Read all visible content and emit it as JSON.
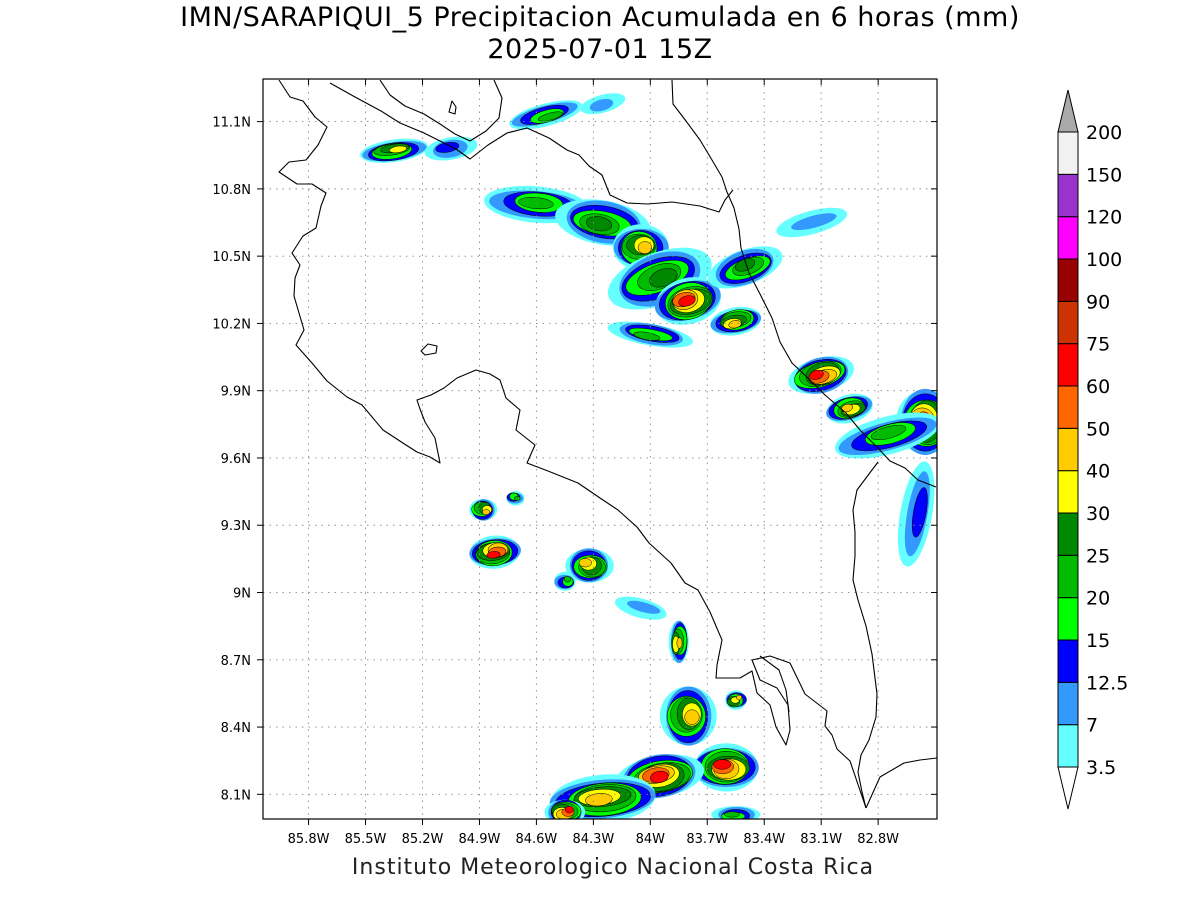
{
  "title_line1": "IMN/SARAPIQUI_5 Precipitacion Acumulada en 6 horas (mm)",
  "title_line2": "2025-07-01 15Z",
  "credit": "Instituto Meteorologico Nacional Costa Rica",
  "map": {
    "lon_range": [
      -86.04,
      -82.49
    ],
    "lat_range": [
      7.99,
      11.29
    ],
    "grid": "dotted",
    "lon_ticks": [
      {
        "value": -85.8,
        "label": "85.8W"
      },
      {
        "value": -85.5,
        "label": "85.5W"
      },
      {
        "value": -85.2,
        "label": "85.2W"
      },
      {
        "value": -84.9,
        "label": "84.9W"
      },
      {
        "value": -84.6,
        "label": "84.6W"
      },
      {
        "value": -84.3,
        "label": "84.3W"
      },
      {
        "value": -84.0,
        "label": "84W"
      },
      {
        "value": -83.7,
        "label": "83.7W"
      },
      {
        "value": -83.4,
        "label": "83.4W"
      },
      {
        "value": -83.1,
        "label": "83.1W"
      },
      {
        "value": -82.8,
        "label": "82.8W"
      }
    ],
    "lat_ticks": [
      {
        "value": 11.1,
        "label": "11.1N"
      },
      {
        "value": 10.8,
        "label": "10.8N"
      },
      {
        "value": 10.5,
        "label": "10.5N"
      },
      {
        "value": 10.2,
        "label": "10.2N"
      },
      {
        "value": 9.9,
        "label": "9.9N"
      },
      {
        "value": 9.6,
        "label": "9.6N"
      },
      {
        "value": 9.3,
        "label": "9.3N"
      },
      {
        "value": 9.0,
        "label": "9N"
      },
      {
        "value": 8.7,
        "label": "8.7N"
      },
      {
        "value": 8.4,
        "label": "8.4N"
      },
      {
        "value": 8.1,
        "label": "8.1N"
      }
    ]
  },
  "colorbar": {
    "labels": [
      "3.5",
      "7",
      "12.5",
      "15",
      "20",
      "25",
      "30",
      "40",
      "50",
      "60",
      "75",
      "90",
      "100",
      "120",
      "150",
      "200"
    ],
    "bins": [
      {
        "color": "#66ffff"
      },
      {
        "color": "#3399ff"
      },
      {
        "color": "#0000ff"
      },
      {
        "color": "#00ff00"
      },
      {
        "color": "#00bb00"
      },
      {
        "color": "#008800"
      },
      {
        "color": "#ffff00"
      },
      {
        "color": "#ffcc00"
      },
      {
        "color": "#ff6600"
      },
      {
        "color": "#ff0000"
      },
      {
        "color": "#cc3300"
      },
      {
        "color": "#990000"
      },
      {
        "color": "#ff00ff"
      },
      {
        "color": "#9933cc"
      },
      {
        "color": "#f2f2f2"
      }
    ],
    "under_color": "#ffffff",
    "over_color": "#aaaaaa"
  },
  "precip_cells": [
    {
      "lon": -85.35,
      "lat": 10.97,
      "rx": 0.18,
      "ry": 0.05,
      "rot": -8,
      "max": 32
    },
    {
      "lon": -85.05,
      "lat": 10.98,
      "rx": 0.14,
      "ry": 0.05,
      "rot": -10,
      "max": 14
    },
    {
      "lon": -84.55,
      "lat": 11.13,
      "rx": 0.2,
      "ry": 0.05,
      "rot": -15,
      "max": 22
    },
    {
      "lon": -84.25,
      "lat": 11.18,
      "rx": 0.12,
      "ry": 0.04,
      "rot": -15,
      "max": 8
    },
    {
      "lon": -84.6,
      "lat": 10.73,
      "rx": 0.28,
      "ry": 0.08,
      "rot": 5,
      "max": 23
    },
    {
      "lon": -84.25,
      "lat": 10.65,
      "rx": 0.25,
      "ry": 0.1,
      "rot": 10,
      "max": 26
    },
    {
      "lon": -84.05,
      "lat": 10.54,
      "rx": 0.15,
      "ry": 0.1,
      "rot": 0,
      "max": 42
    },
    {
      "lon": -83.95,
      "lat": 10.4,
      "rx": 0.28,
      "ry": 0.12,
      "rot": -20,
      "max": 26
    },
    {
      "lon": -83.8,
      "lat": 10.3,
      "rx": 0.18,
      "ry": 0.1,
      "rot": -15,
      "max": 62
    },
    {
      "lon": -83.5,
      "lat": 10.45,
      "rx": 0.2,
      "ry": 0.08,
      "rot": -20,
      "max": 28
    },
    {
      "lon": -83.55,
      "lat": 10.21,
      "rx": 0.14,
      "ry": 0.06,
      "rot": -10,
      "max": 40
    },
    {
      "lon": -84.0,
      "lat": 10.15,
      "rx": 0.22,
      "ry": 0.05,
      "rot": 10,
      "max": 22
    },
    {
      "lon": -83.15,
      "lat": 10.65,
      "rx": 0.2,
      "ry": 0.05,
      "rot": -15,
      "max": 8
    },
    {
      "lon": -83.1,
      "lat": 9.97,
      "rx": 0.17,
      "ry": 0.08,
      "rot": -15,
      "max": 62
    },
    {
      "lon": -82.95,
      "lat": 9.82,
      "rx": 0.13,
      "ry": 0.06,
      "rot": -15,
      "max": 42
    },
    {
      "lon": -82.55,
      "lat": 9.76,
      "rx": 0.15,
      "ry": 0.15,
      "rot": 0,
      "max": 70
    },
    {
      "lon": -82.75,
      "lat": 9.7,
      "rx": 0.3,
      "ry": 0.08,
      "rot": -15,
      "max": 22
    },
    {
      "lon": -82.6,
      "lat": 9.35,
      "rx": 0.08,
      "ry": 0.25,
      "rot": 10,
      "max": 14
    },
    {
      "lon": -84.82,
      "lat": 9.18,
      "rx": 0.14,
      "ry": 0.07,
      "rot": -5,
      "max": 72
    },
    {
      "lon": -84.88,
      "lat": 9.37,
      "rx": 0.07,
      "ry": 0.05,
      "rot": 0,
      "max": 40
    },
    {
      "lon": -84.71,
      "lat": 9.42,
      "rx": 0.05,
      "ry": 0.03,
      "rot": 0,
      "max": 22
    },
    {
      "lon": -84.32,
      "lat": 9.12,
      "rx": 0.12,
      "ry": 0.08,
      "rot": 0,
      "max": 42
    },
    {
      "lon": -84.45,
      "lat": 9.05,
      "rx": 0.06,
      "ry": 0.04,
      "rot": 0,
      "max": 22
    },
    {
      "lon": -83.85,
      "lat": 8.78,
      "rx": 0.05,
      "ry": 0.1,
      "rot": 0,
      "max": 42
    },
    {
      "lon": -84.05,
      "lat": 8.93,
      "rx": 0.15,
      "ry": 0.04,
      "rot": 15,
      "max": 12
    },
    {
      "lon": -83.8,
      "lat": 8.45,
      "rx": 0.14,
      "ry": 0.14,
      "rot": 0,
      "max": 42
    },
    {
      "lon": -83.6,
      "lat": 8.22,
      "rx": 0.18,
      "ry": 0.1,
      "rot": 0,
      "max": 62
    },
    {
      "lon": -83.95,
      "lat": 8.18,
      "rx": 0.22,
      "ry": 0.1,
      "rot": -10,
      "max": 62
    },
    {
      "lon": -84.25,
      "lat": 8.08,
      "rx": 0.3,
      "ry": 0.1,
      "rot": -5,
      "max": 48
    },
    {
      "lon": -84.45,
      "lat": 8.02,
      "rx": 0.1,
      "ry": 0.06,
      "rot": 0,
      "max": 62
    },
    {
      "lon": -83.55,
      "lat": 8.52,
      "rx": 0.06,
      "ry": 0.04,
      "rot": 0,
      "max": 42
    },
    {
      "lon": -83.55,
      "lat": 8.01,
      "rx": 0.12,
      "ry": 0.04,
      "rot": 0,
      "max": 22
    }
  ]
}
